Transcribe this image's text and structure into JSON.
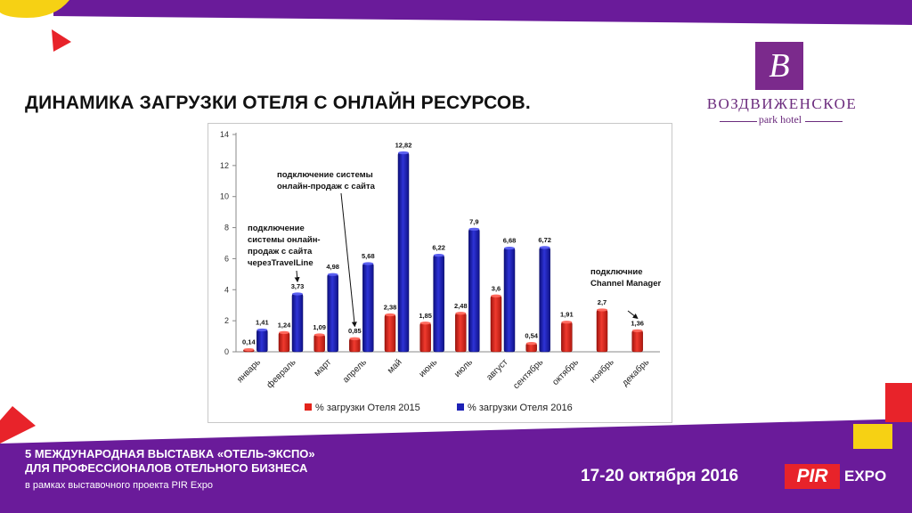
{
  "slide": {
    "title": "ДИНАМИКА ЗАГРУЗКИ ОТЕЛЯ С ОНЛАЙН РЕСУРСОВ."
  },
  "logo": {
    "monogram": "B",
    "name": "ВОЗДВИЖЕНСКОЕ",
    "sub": "park hotel"
  },
  "footer": {
    "line1": "5 МЕЖДУНАРОДНАЯ ВЫСТАВКА «ОТЕЛЬ-ЭКСПО»",
    "line2": "ДЛЯ ПРОФЕССИОНАЛОВ ОТЕЛЬНОГО БИЗНЕСА",
    "line3": "в рамках выставочного проекта PIR Expo",
    "dates": "17-20 октября 2016",
    "pir": "PIR",
    "expo": "EXPO"
  },
  "colors": {
    "purple": "#6a1b9a",
    "red": "#e8232a",
    "yellow": "#f6d114",
    "series2015": "#e3241b",
    "series2016": "#1d21b6"
  },
  "chart_data": {
    "type": "bar",
    "categories": [
      "январь",
      "февраль",
      "март",
      "апрель",
      "май",
      "июнь",
      "июль",
      "август",
      "сентябрь",
      "октябрь",
      "ноябрь",
      "декабрь"
    ],
    "series": [
      {
        "name": "% загрузки Отеля 2015",
        "color": "#e3241b",
        "values": [
          0.14,
          1.24,
          1.09,
          0.85,
          2.38,
          1.85,
          2.48,
          3.6,
          0.54,
          1.91,
          2.7,
          1.36
        ],
        "labels": [
          "0,14",
          "1,24",
          "1,09",
          "0,85",
          "2,38",
          "1,85",
          "2,48",
          "3,6",
          "0,54",
          "1,91",
          "2,7",
          "1,36"
        ]
      },
      {
        "name": "% загрузки Отеля 2016",
        "color": "#1d21b6",
        "values": [
          1.41,
          3.73,
          4.98,
          5.68,
          12.82,
          6.22,
          7.9,
          6.68,
          6.72,
          null,
          null,
          null
        ],
        "labels": [
          "1,41",
          "3,73",
          "4,98",
          "5,68",
          "12,82",
          "6,22",
          "7,9",
          "6,68",
          "6,72",
          "",
          "",
          ""
        ]
      }
    ],
    "ylim": [
      0,
      14
    ],
    "yticks": [
      "0",
      "2",
      "4",
      "6",
      "8",
      "10",
      "12",
      "14"
    ],
    "legend": "bottom",
    "annotations": [
      {
        "lines": [
          "подключение",
          "системы онлайн-",
          "продаж с сайта",
          "черезTravelLine"
        ],
        "target_category": "февраль",
        "target_series": 1
      },
      {
        "lines": [
          "подключение  системы",
          "онлайн-продаж с сайта"
        ],
        "target_category": "апрель",
        "target_series": 0
      },
      {
        "lines": [
          "подключние",
          "Channel Manager"
        ],
        "target_category": "декабрь",
        "target_series": 0
      }
    ]
  }
}
